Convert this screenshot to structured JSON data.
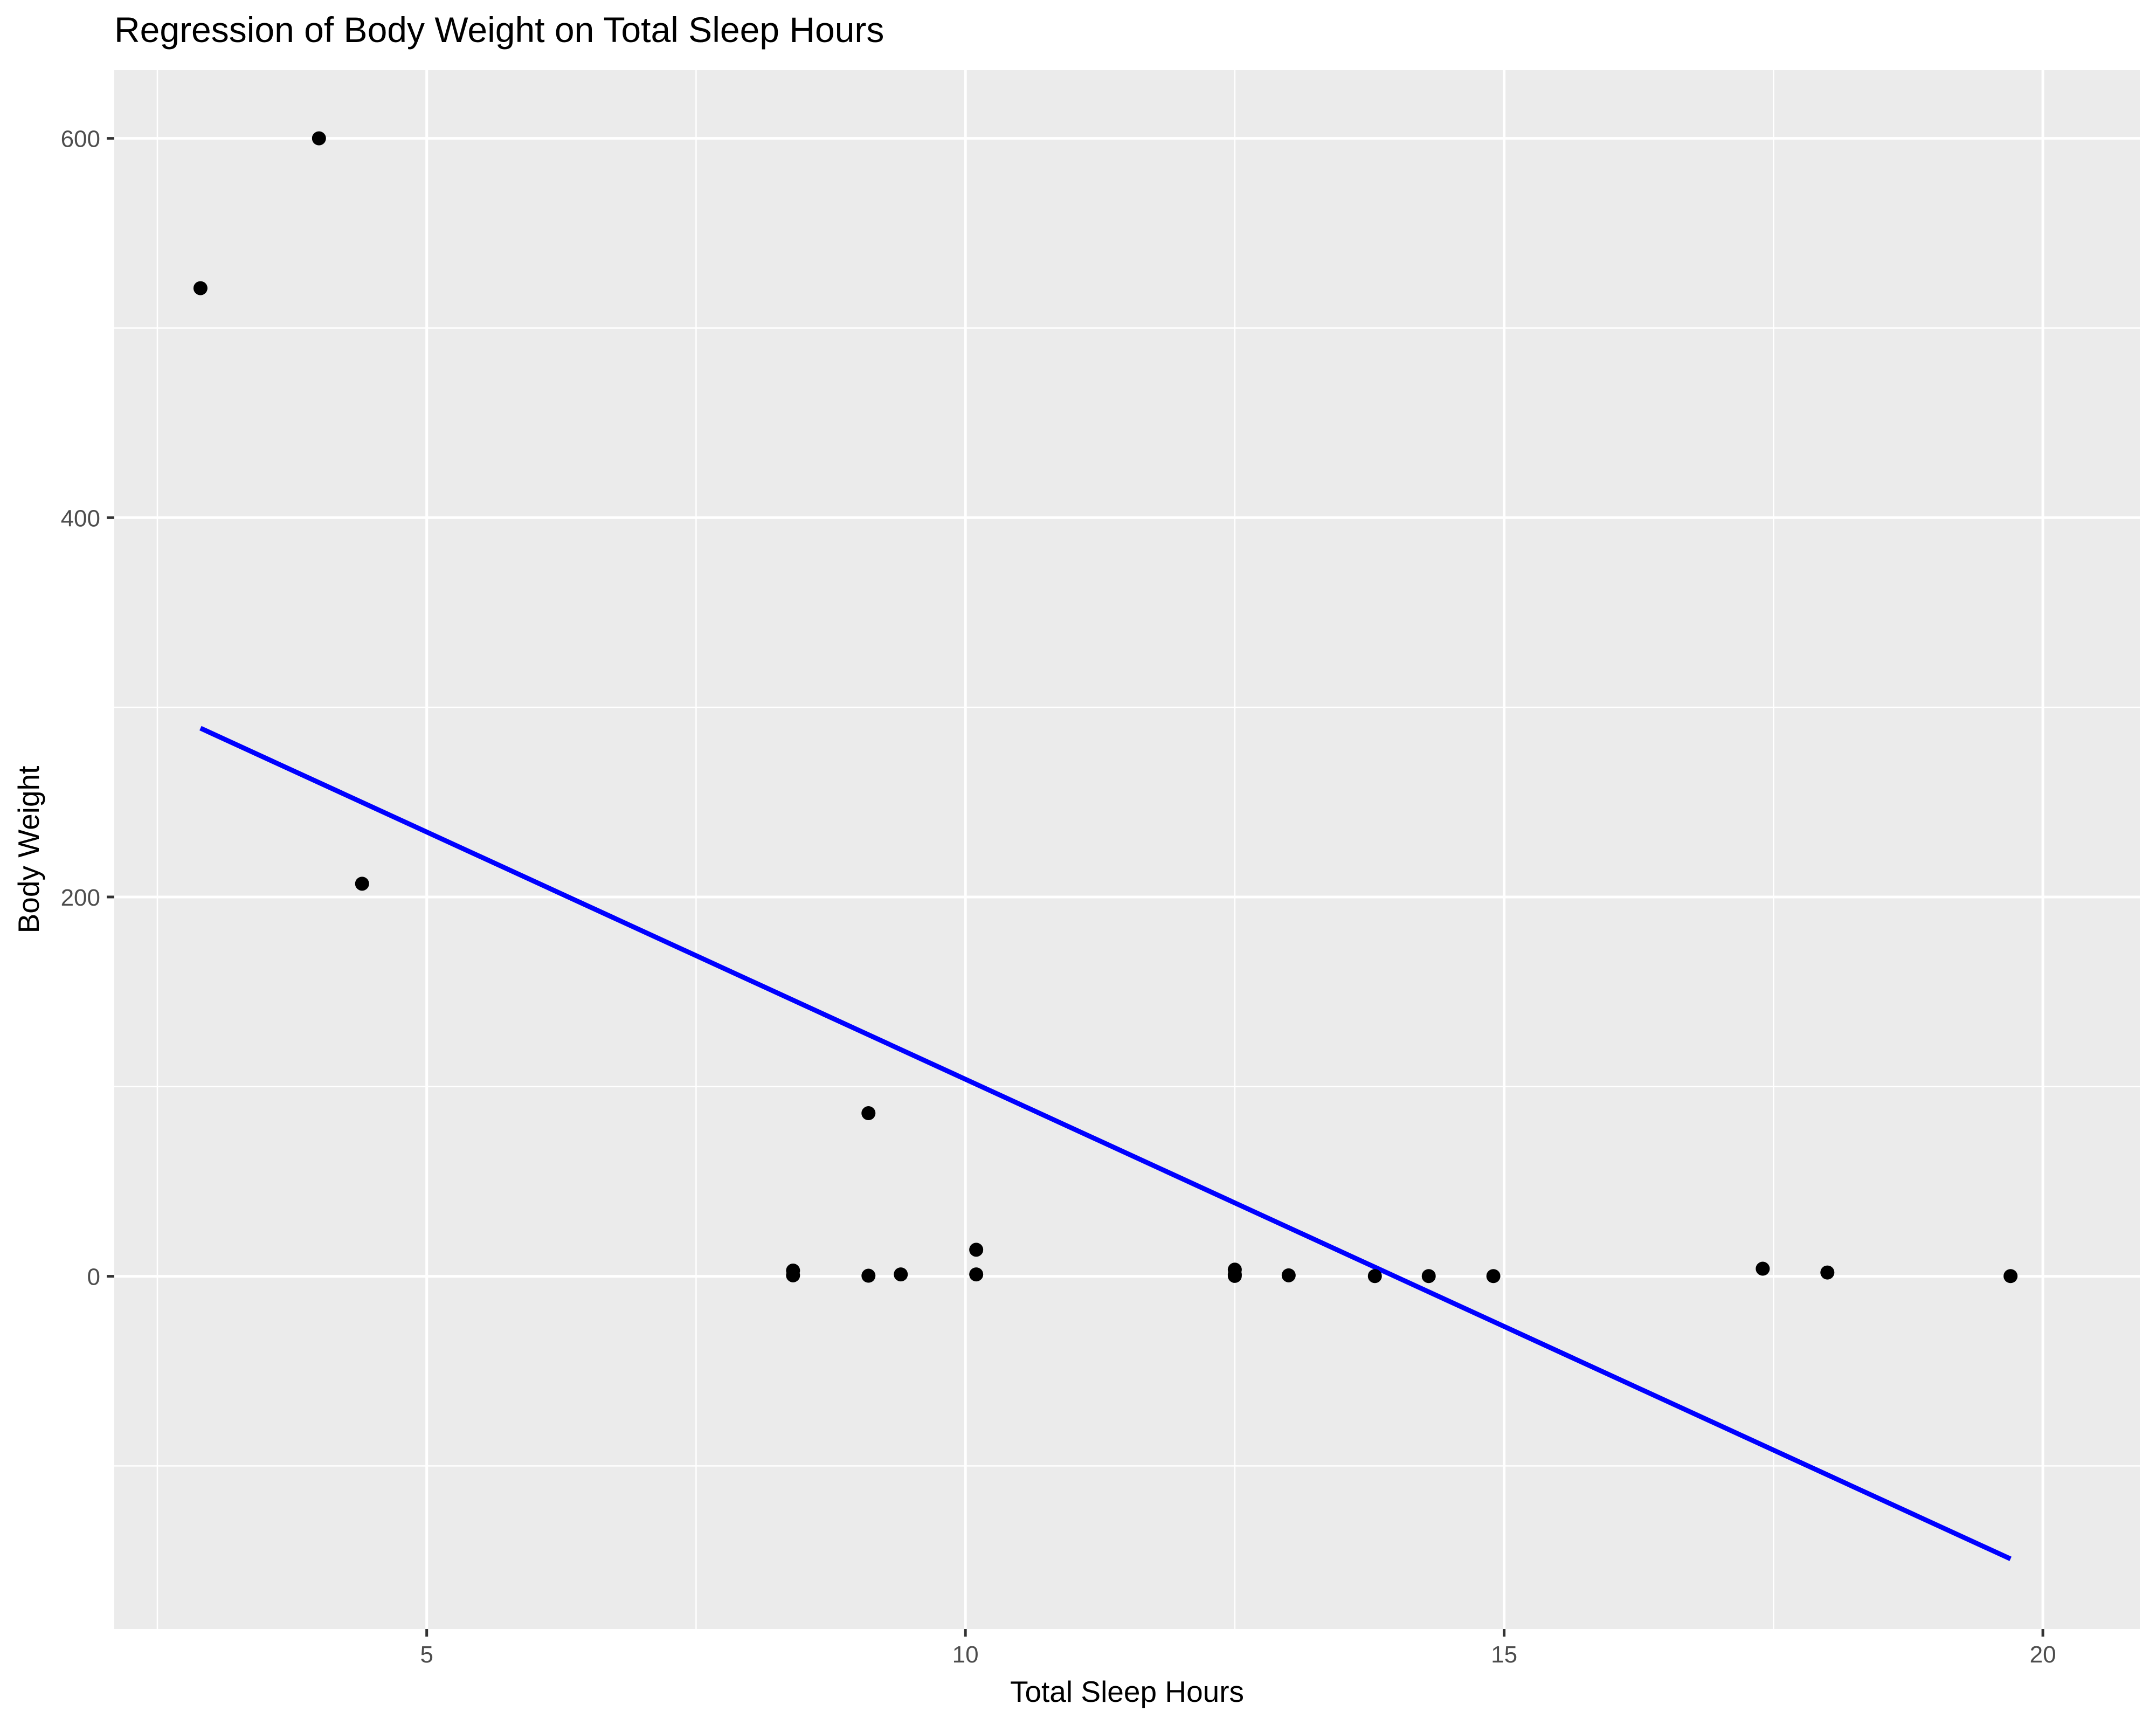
{
  "chart_data": {
    "type": "scatter",
    "title": "Regression of Body Weight on Total Sleep Hours",
    "xlabel": "Total Sleep Hours",
    "ylabel": "Body Weight",
    "xlim": [
      2.1,
      20.9
    ],
    "ylim": [
      -186,
      636
    ],
    "x_ticks": [
      5,
      10,
      15,
      20
    ],
    "x_tick_labels": [
      "5",
      "10",
      "15",
      "20"
    ],
    "x_minor_ticks": [
      2.5,
      7.5,
      12.5,
      17.5
    ],
    "y_ticks": [
      0,
      200,
      400,
      600
    ],
    "y_tick_labels": [
      "0",
      "200",
      "400",
      "600"
    ],
    "y_minor_ticks": [
      -100,
      100,
      300,
      500
    ],
    "grid": true,
    "colors": {
      "panel": "#ebebeb",
      "grid": "#ffffff",
      "point": "#000000",
      "line": "#0000ff"
    },
    "series": [
      {
        "name": "observations",
        "type": "scatter",
        "x": [
          2.9,
          4.0,
          4.4,
          8.4,
          8.4,
          9.1,
          9.1,
          9.4,
          10.1,
          10.1,
          12.5,
          12.5,
          12.5,
          13.0,
          13.8,
          14.3,
          14.9,
          17.4,
          18.0,
          19.7
        ],
        "y": [
          521,
          600,
          207,
          3,
          0.5,
          86,
          0.3,
          1,
          14,
          1,
          3.5,
          1,
          0.2,
          0.5,
          0.1,
          0.1,
          0.1,
          4,
          2,
          0.1
        ]
      },
      {
        "name": "regression line",
        "type": "line",
        "x": [
          2.9,
          19.7
        ],
        "y": [
          289,
          -149
        ]
      }
    ]
  }
}
